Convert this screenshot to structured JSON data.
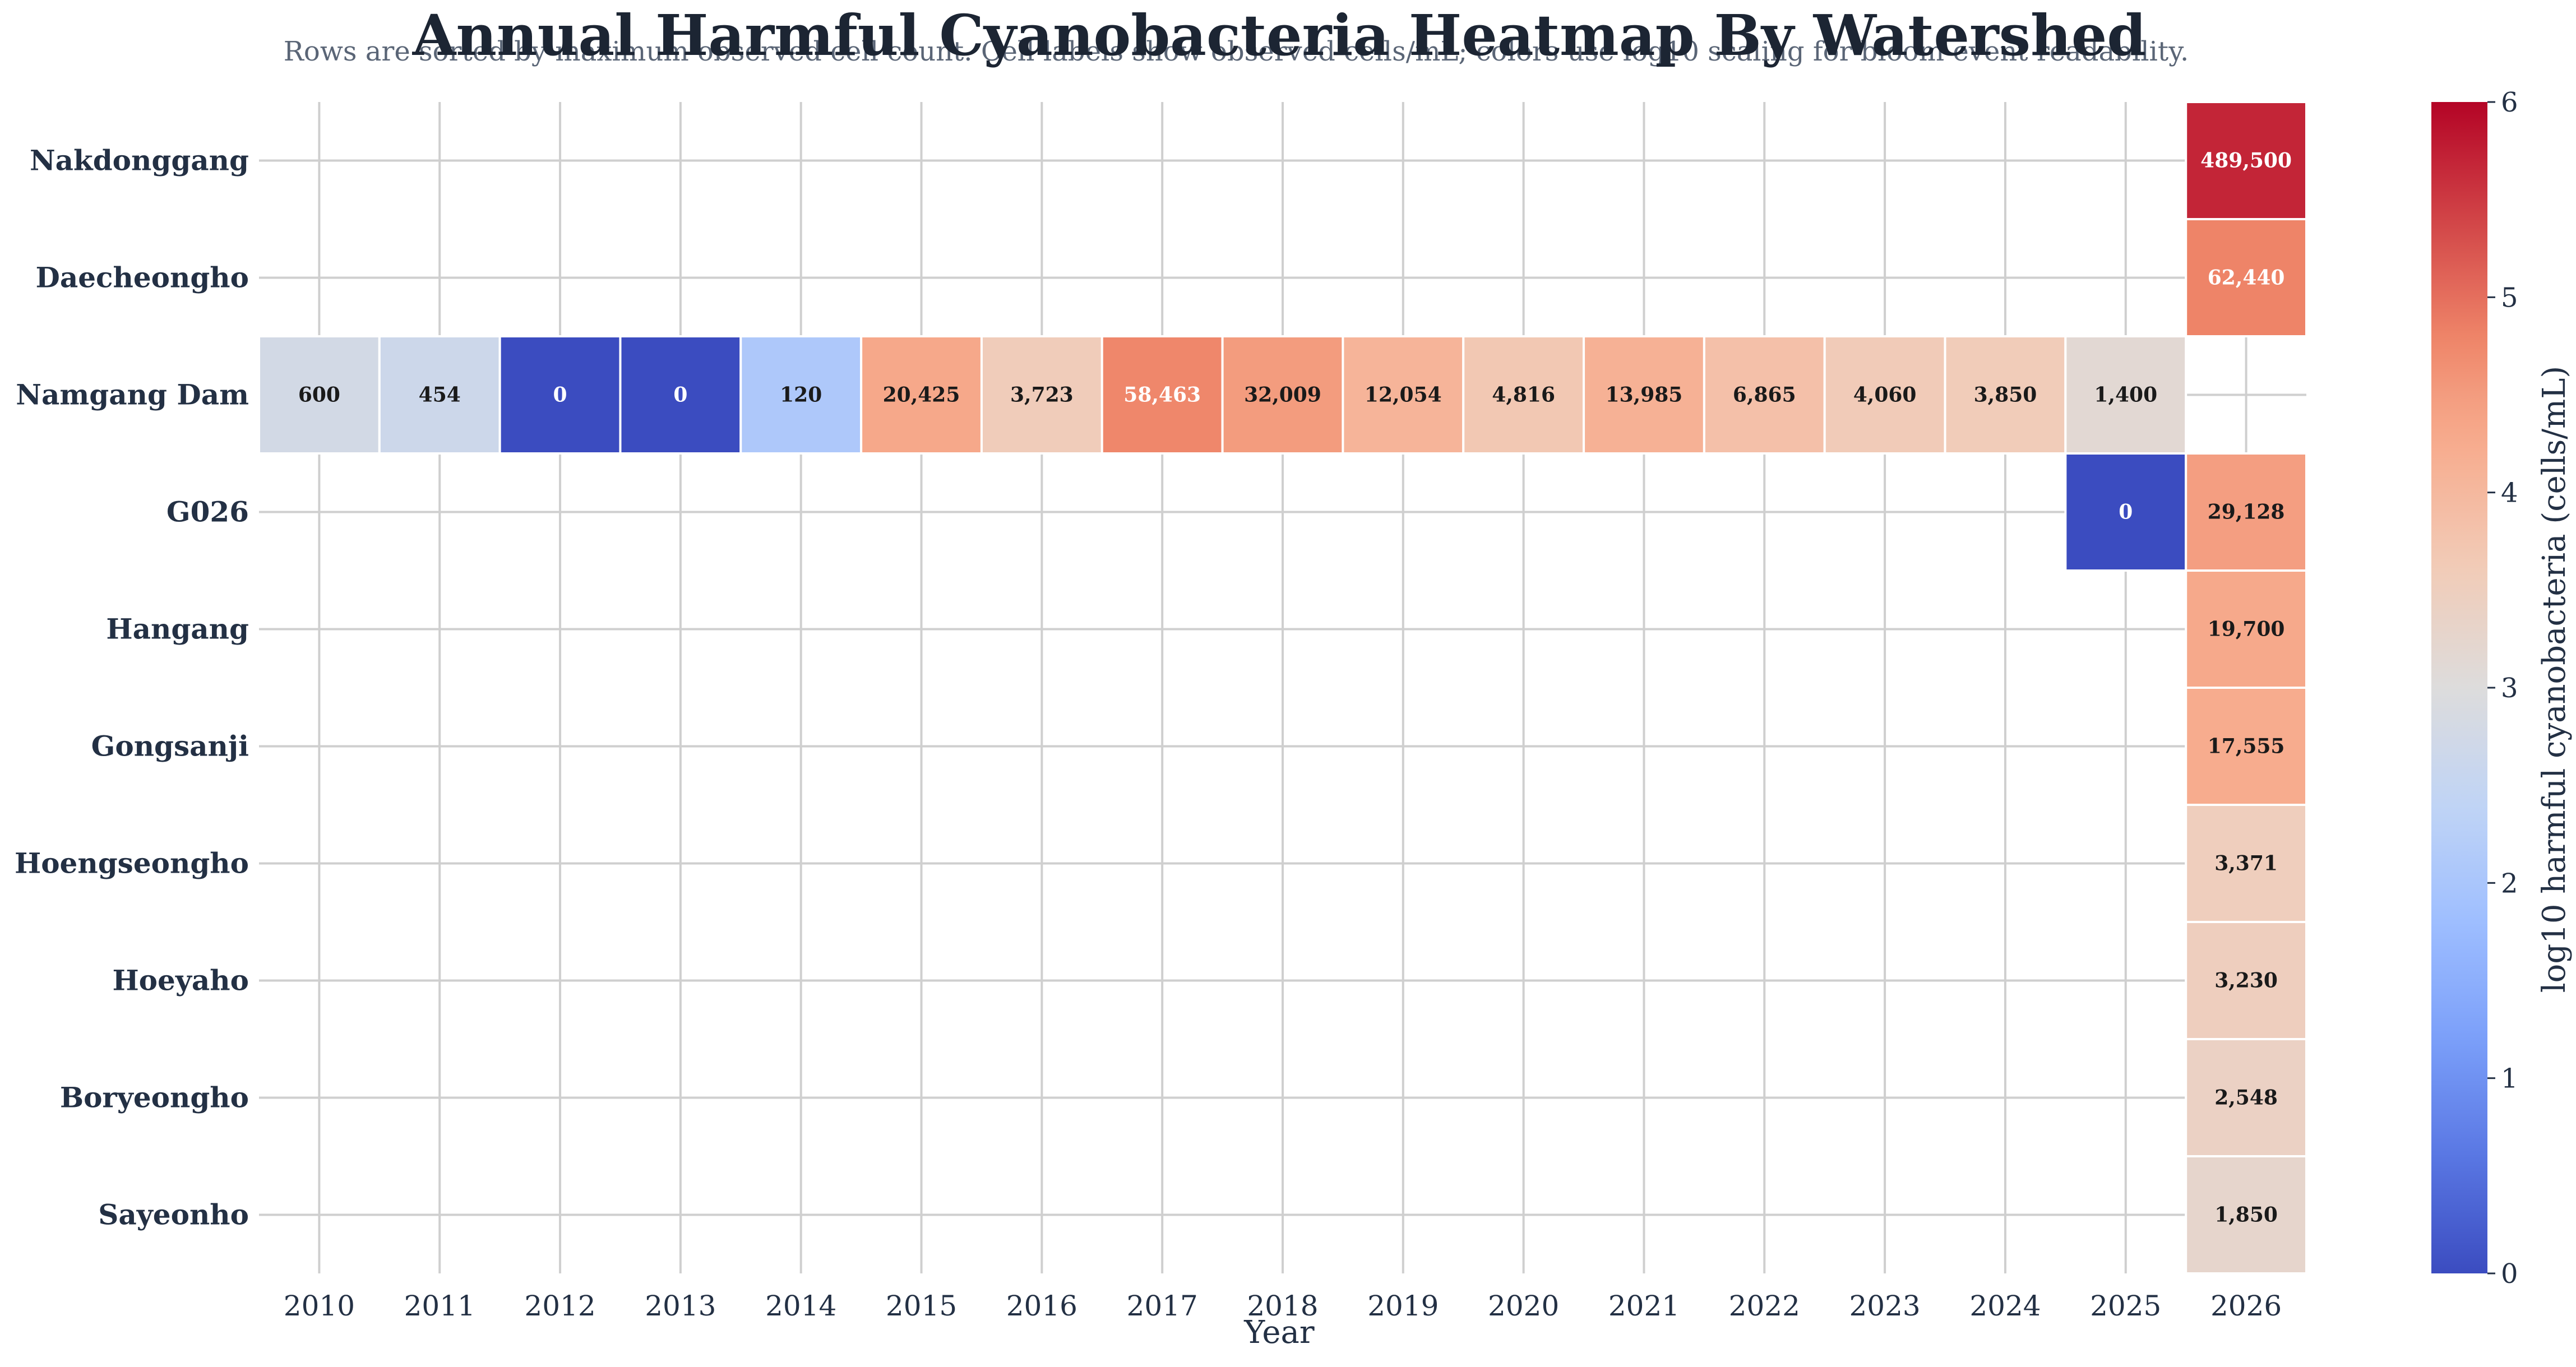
{
  "chart_data": {
    "type": "heatmap",
    "title": "Annual Harmful Cyanobacteria Heatmap By Watershed",
    "subtitle": "Rows are sorted by maximum observed cell count. Cell labels show observed cells/mL; colors use log10 scaling for bloom event readability.",
    "xlabel": "Year",
    "colorbar_label": "log10 harmful cyanobacteria (cells/mL)",
    "colorbar_ticks": [
      "0",
      "1",
      "2",
      "3",
      "4",
      "5",
      "6"
    ],
    "colorbar_range": [
      0,
      6
    ],
    "colormap": "coolwarm",
    "grid": true,
    "x": [
      "2010",
      "2011",
      "2012",
      "2013",
      "2014",
      "2015",
      "2016",
      "2017",
      "2018",
      "2019",
      "2020",
      "2021",
      "2022",
      "2023",
      "2024",
      "2025",
      "2026"
    ],
    "rows": [
      {
        "name": "Nakdonggang",
        "values": [
          null,
          null,
          null,
          null,
          null,
          null,
          null,
          null,
          null,
          null,
          null,
          null,
          null,
          null,
          null,
          null,
          489500
        ]
      },
      {
        "name": "Daecheongho",
        "values": [
          null,
          null,
          null,
          null,
          null,
          null,
          null,
          null,
          null,
          null,
          null,
          null,
          null,
          null,
          null,
          null,
          62440
        ]
      },
      {
        "name": "Namgang Dam",
        "values": [
          600,
          454,
          0,
          0,
          120,
          20425,
          3723,
          58463,
          32009,
          12054,
          4816,
          13985,
          6865,
          4060,
          3850,
          1400,
          null
        ]
      },
      {
        "name": "G026",
        "values": [
          null,
          null,
          null,
          null,
          null,
          null,
          null,
          null,
          null,
          null,
          null,
          null,
          null,
          null,
          null,
          0,
          29128
        ]
      },
      {
        "name": "Hangang",
        "values": [
          null,
          null,
          null,
          null,
          null,
          null,
          null,
          null,
          null,
          null,
          null,
          null,
          null,
          null,
          null,
          null,
          19700
        ]
      },
      {
        "name": "Gongsanji",
        "values": [
          null,
          null,
          null,
          null,
          null,
          null,
          null,
          null,
          null,
          null,
          null,
          null,
          null,
          null,
          null,
          null,
          17555
        ]
      },
      {
        "name": "Hoengseongho",
        "values": [
          null,
          null,
          null,
          null,
          null,
          null,
          null,
          null,
          null,
          null,
          null,
          null,
          null,
          null,
          null,
          null,
          3371
        ]
      },
      {
        "name": "Hoeyaho",
        "values": [
          null,
          null,
          null,
          null,
          null,
          null,
          null,
          null,
          null,
          null,
          null,
          null,
          null,
          null,
          null,
          null,
          3230
        ]
      },
      {
        "name": "Boryeongho",
        "values": [
          null,
          null,
          null,
          null,
          null,
          null,
          null,
          null,
          null,
          null,
          null,
          null,
          null,
          null,
          null,
          null,
          2548
        ]
      },
      {
        "name": "Sayeonho",
        "values": [
          null,
          null,
          null,
          null,
          null,
          null,
          null,
          null,
          null,
          null,
          null,
          null,
          null,
          null,
          null,
          null,
          1850
        ]
      }
    ]
  }
}
